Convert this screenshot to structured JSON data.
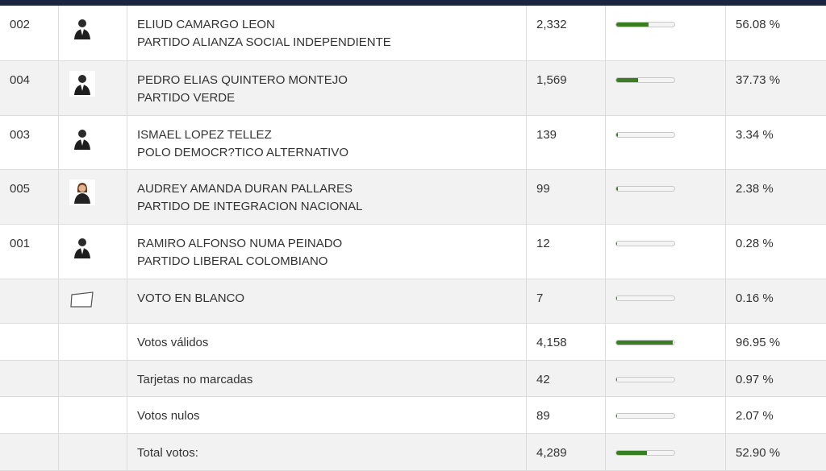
{
  "table": {
    "rows": [
      {
        "code": "002",
        "name": "ELIUD CAMARGO LEON",
        "party": "PARTIDO ALIANZA SOCIAL INDEPENDIENTE",
        "votes": "2,332",
        "pct": {
          "value": 56.08,
          "label": "56.08 %"
        }
      },
      {
        "code": "004",
        "name": "PEDRO ELIAS QUINTERO MONTEJO",
        "party": "PARTIDO VERDE",
        "votes": "1,569",
        "pct": {
          "value": 37.73,
          "label": "37.73 %"
        }
      },
      {
        "code": "003",
        "name": "ISMAEL LOPEZ TELLEZ",
        "party": "POLO DEMOCR?TICO ALTERNATIVO",
        "votes": "139",
        "pct": {
          "value": 3.34,
          "label": "3.34 %"
        }
      },
      {
        "code": "005",
        "name": "AUDREY AMANDA DURAN PALLARES",
        "party": "PARTIDO DE INTEGRACION NACIONAL",
        "votes": "99",
        "pct": {
          "value": 2.38,
          "label": "2.38 %"
        }
      },
      {
        "code": "001",
        "name": "RAMIRO ALFONSO NUMA PEINADO",
        "party": "PARTIDO LIBERAL COLOMBIANO",
        "votes": "12",
        "pct": {
          "value": 0.28,
          "label": "0.28 %"
        }
      },
      {
        "name": "VOTO EN BLANCO",
        "votes": "7",
        "pct": {
          "value": 0.16,
          "label": "0.16 %"
        }
      },
      {
        "name": "Votos válidos",
        "votes": "4,158",
        "pct": {
          "value": 96.95,
          "label": "96.95 %"
        }
      },
      {
        "name": "Tarjetas no marcadas",
        "votes": "42",
        "pct": {
          "value": 0.97,
          "label": "0.97 %"
        }
      },
      {
        "name": "Votos nulos",
        "votes": "89",
        "pct": {
          "value": 2.07,
          "label": "2.07 %"
        }
      },
      {
        "name": "Total votos:",
        "votes": "4,289",
        "pct": {
          "value": 52.9,
          "label": "52.90 %"
        }
      }
    ]
  }
}
